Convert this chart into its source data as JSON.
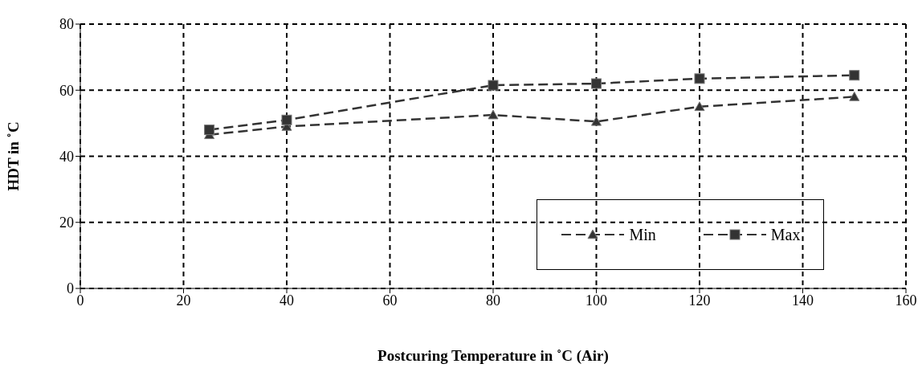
{
  "chart_data": {
    "type": "line",
    "xlabel": "Postcuring Temperature in ˚C (Air)",
    "ylabel": "HDT in ˚C",
    "x": [
      25,
      40,
      80,
      100,
      120,
      150
    ],
    "series": [
      {
        "name": "Min",
        "color": "#333333",
        "values": [
          46.5,
          49,
          52.5,
          50.5,
          55,
          58
        ],
        "marker": "triangle"
      },
      {
        "name": "Max",
        "color": "#333333",
        "values": [
          48,
          51,
          61.5,
          62,
          63.5,
          64.5
        ],
        "marker": "square"
      }
    ],
    "xlim": [
      0,
      160
    ],
    "xticks": [
      0,
      20,
      40,
      60,
      80,
      100,
      120,
      140,
      160
    ],
    "ylim": [
      0,
      80
    ],
    "yticks": [
      0,
      20,
      40,
      60,
      80
    ],
    "grid": true,
    "legend": "bottom right",
    "line_style": "dashed"
  }
}
